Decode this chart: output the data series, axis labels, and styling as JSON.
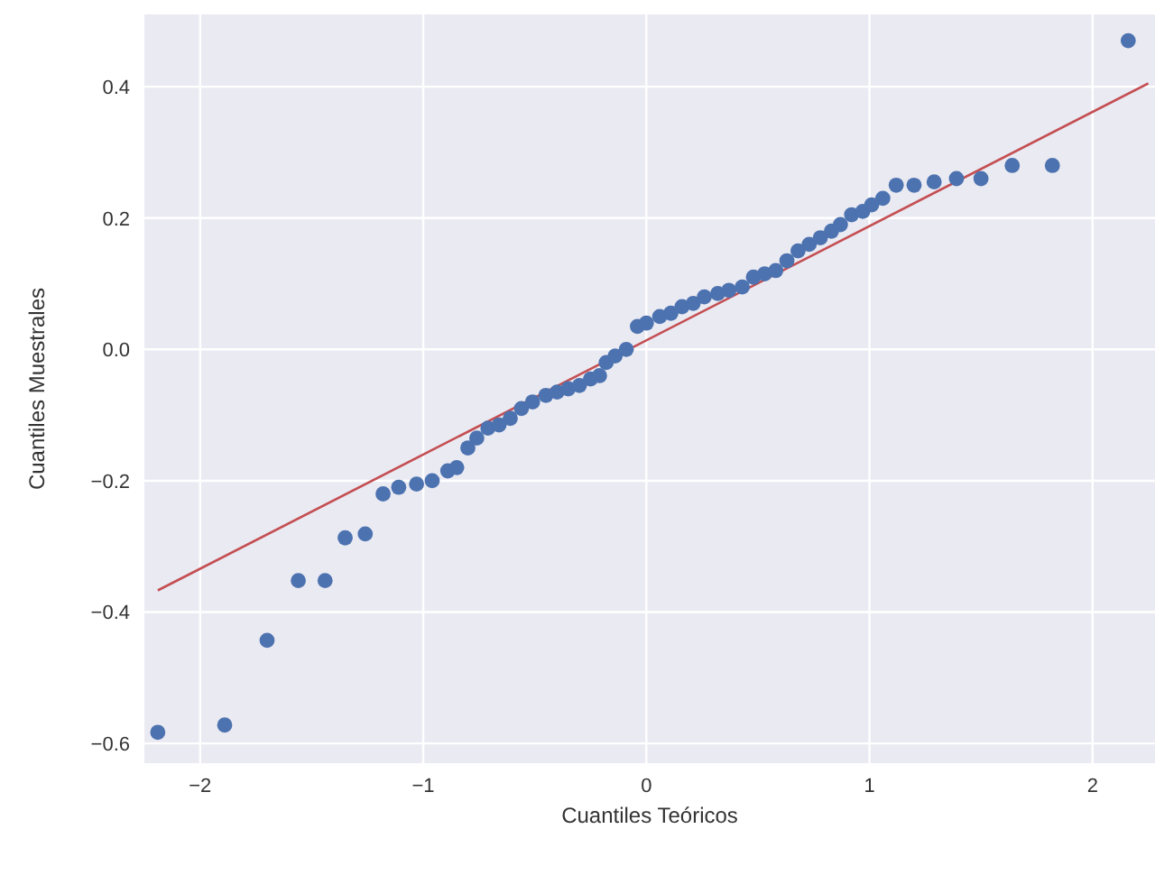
{
  "chart_data": {
    "type": "scatter",
    "xlabel": "Cuantiles Teóricos",
    "ylabel": "Cuantiles Muestrales",
    "xlim": [
      -2.25,
      2.28
    ],
    "ylim": [
      -0.63,
      0.51
    ],
    "xticks": [
      {
        "value": -2,
        "label": "−2"
      },
      {
        "value": -1,
        "label": "−1"
      },
      0,
      1,
      2
    ],
    "yticks": [
      {
        "value": -0.6,
        "label": "−0.6"
      },
      {
        "value": -0.4,
        "label": "−0.4"
      },
      {
        "value": -0.2,
        "label": "−0.2"
      },
      {
        "value": 0,
        "label": "0.0"
      },
      {
        "value": 0.2,
        "label": "0.2"
      },
      {
        "value": 0.4,
        "label": "0.4"
      }
    ],
    "grid": true,
    "legend": false,
    "series": [
      {
        "marker": "circle",
        "color": "#4c72b0",
        "x": [
          -2.19,
          -1.89,
          -1.7,
          -1.56,
          -1.44,
          -1.35,
          -1.26,
          -1.18,
          -1.11,
          -1.03,
          -0.96,
          -0.89,
          -0.85,
          -0.8,
          -0.76,
          -0.71,
          -0.66,
          -0.61,
          -0.56,
          -0.51,
          -0.45,
          -0.4,
          -0.35,
          -0.3,
          -0.25,
          -0.21,
          -0.18,
          -0.14,
          -0.09,
          -0.04,
          0.0,
          0.06,
          0.11,
          0.16,
          0.21,
          0.26,
          0.32,
          0.37,
          0.43,
          0.48,
          0.53,
          0.58,
          0.63,
          0.68,
          0.73,
          0.78,
          0.83,
          0.87,
          0.92,
          0.97,
          1.01,
          1.06,
          1.12,
          1.2,
          1.29,
          1.39,
          1.5,
          1.64,
          1.82,
          2.16
        ],
        "values": [
          -0.583,
          -0.572,
          -0.443,
          -0.352,
          -0.352,
          -0.287,
          -0.281,
          -0.22,
          -0.21,
          -0.205,
          -0.2,
          -0.185,
          -0.18,
          -0.15,
          -0.135,
          -0.12,
          -0.115,
          -0.105,
          -0.09,
          -0.08,
          -0.07,
          -0.065,
          -0.06,
          -0.055,
          -0.045,
          -0.04,
          -0.02,
          -0.01,
          0.0,
          0.035,
          0.04,
          0.05,
          0.055,
          0.065,
          0.07,
          0.08,
          0.085,
          0.09,
          0.095,
          0.11,
          0.115,
          0.12,
          0.135,
          0.15,
          0.16,
          0.17,
          0.18,
          0.19,
          0.205,
          0.21,
          0.22,
          0.23,
          0.25,
          0.25,
          0.255,
          0.26,
          0.26,
          0.28,
          0.28,
          0.47
        ]
      },
      {
        "type": "line",
        "marker": "none",
        "color": "#c44e52",
        "x": [
          -2.19,
          2.25
        ],
        "values": [
          -0.367,
          0.405
        ]
      }
    ]
  }
}
